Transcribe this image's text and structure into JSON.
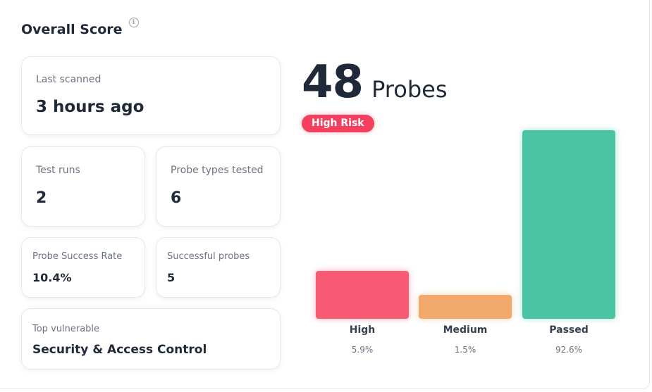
{
  "header": {
    "title": "Overall Score",
    "info_icon": "info-icon"
  },
  "cards": {
    "last_scanned": {
      "label": "Last scanned",
      "value": "3 hours ago"
    },
    "test_runs": {
      "label": "Test runs",
      "value": "2"
    },
    "probe_types": {
      "label": "Probe types tested",
      "value": "6"
    },
    "success_rate": {
      "label": "Probe Success Rate",
      "value": "10.4%"
    },
    "successful_probes": {
      "label": "Successful probes",
      "value": "5"
    },
    "top_vulnerable": {
      "label": "Top vulnerable",
      "value": "Security & Access Control"
    }
  },
  "summary": {
    "count": "48",
    "count_label": "Probes",
    "risk_label": "High Risk",
    "risk_color": "#f43f5e"
  },
  "chart_data": {
    "type": "bar",
    "categories": [
      "High",
      "Medium",
      "Passed"
    ],
    "values": [
      5.9,
      1.5,
      92.6
    ],
    "value_labels": [
      "5.9%",
      "1.5%",
      "92.6%"
    ],
    "colors": [
      "#f75a73",
      "#f2a96b",
      "#4bc4a4"
    ],
    "title": "",
    "xlabel": "",
    "ylabel": "",
    "grid": false
  }
}
